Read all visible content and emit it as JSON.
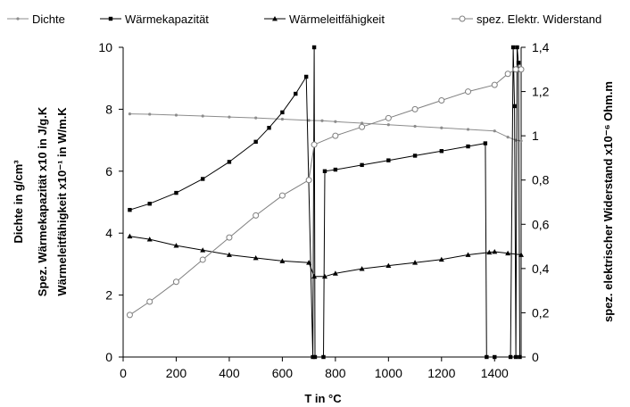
{
  "chart_data": {
    "type": "line",
    "x": {
      "label": "T in °C",
      "range": [
        0,
        1500
      ],
      "ticks": [
        "0",
        "200",
        "400",
        "600",
        "800",
        "1000",
        "1200",
        "1400"
      ],
      "tick_values": [
        0,
        200,
        400,
        600,
        800,
        1000,
        1200,
        1400
      ]
    },
    "y_left": {
      "labels": [
        "Dichte in g/cm³",
        "Spez. Wärmekapazität x10 in  J/g.K",
        "Wärmeleitfähigkeit x10⁻¹ in W/m.K"
      ],
      "range": [
        0,
        10
      ],
      "ticks": [
        "0",
        "2",
        "4",
        "6",
        "8",
        "10"
      ],
      "tick_values": [
        0,
        2,
        4,
        6,
        8,
        10
      ]
    },
    "y_right": {
      "label": "spez. elektrischer Widerstand x10⁻⁶ Ohm.m",
      "range": [
        0,
        1.4
      ],
      "ticks": [
        "0",
        "0,2",
        "0,4",
        "0,6",
        "0,8",
        "1",
        "1,2",
        "1,4"
      ],
      "tick_values": [
        0,
        0.2,
        0.4,
        0.6,
        0.8,
        1.0,
        1.2,
        1.4
      ]
    },
    "grid": false,
    "legend_position": "top",
    "series": [
      {
        "name": "Dichte",
        "axis": "left",
        "marker": "small-dot",
        "color": "#8c8c8c",
        "points": [
          [
            25,
            7.85
          ],
          [
            100,
            7.84
          ],
          [
            200,
            7.81
          ],
          [
            300,
            7.78
          ],
          [
            400,
            7.75
          ],
          [
            500,
            7.72
          ],
          [
            600,
            7.68
          ],
          [
            700,
            7.64
          ],
          [
            750,
            7.63
          ],
          [
            800,
            7.6
          ],
          [
            900,
            7.55
          ],
          [
            1000,
            7.5
          ],
          [
            1100,
            7.45
          ],
          [
            1200,
            7.4
          ],
          [
            1300,
            7.35
          ],
          [
            1400,
            7.3
          ],
          [
            1450,
            7.1
          ],
          [
            1480,
            7.0
          ],
          [
            1500,
            6.98
          ]
        ]
      },
      {
        "name": "Wärmekapazität",
        "axis": "left",
        "marker": "filled-square",
        "color": "#000000",
        "points": [
          [
            25,
            4.75
          ],
          [
            100,
            4.95
          ],
          [
            200,
            5.3
          ],
          [
            300,
            5.75
          ],
          [
            400,
            6.3
          ],
          [
            500,
            6.95
          ],
          [
            550,
            7.4
          ],
          [
            600,
            7.9
          ],
          [
            650,
            8.5
          ],
          [
            690,
            9.05
          ],
          [
            715,
            0
          ],
          [
            720,
            10
          ],
          [
            723,
            0
          ],
          [
            755,
            0
          ],
          [
            760,
            6.0
          ],
          [
            800,
            6.05
          ],
          [
            900,
            6.2
          ],
          [
            1000,
            6.35
          ],
          [
            1100,
            6.5
          ],
          [
            1200,
            6.65
          ],
          [
            1300,
            6.8
          ],
          [
            1365,
            6.9
          ],
          [
            1370,
            0
          ],
          [
            1400,
            0
          ],
          [
            1460,
            0
          ],
          [
            1470,
            10
          ],
          [
            1475,
            8.1
          ],
          [
            1480,
            0
          ],
          [
            1485,
            10
          ],
          [
            1490,
            9.5
          ],
          [
            1495,
            0
          ]
        ]
      },
      {
        "name": "Wärmeleitfähigkeit",
        "axis": "left",
        "marker": "filled-triangle",
        "color": "#000000",
        "points": [
          [
            25,
            3.9
          ],
          [
            100,
            3.8
          ],
          [
            200,
            3.6
          ],
          [
            300,
            3.45
          ],
          [
            400,
            3.3
          ],
          [
            500,
            3.2
          ],
          [
            600,
            3.1
          ],
          [
            700,
            3.05
          ],
          [
            720,
            2.6
          ],
          [
            760,
            2.6
          ],
          [
            800,
            2.7
          ],
          [
            900,
            2.85
          ],
          [
            1000,
            2.95
          ],
          [
            1100,
            3.05
          ],
          [
            1200,
            3.15
          ],
          [
            1300,
            3.3
          ],
          [
            1380,
            3.38
          ],
          [
            1400,
            3.4
          ],
          [
            1450,
            3.35
          ],
          [
            1500,
            3.3
          ]
        ]
      },
      {
        "name": "spez. Elektr. Widerstand",
        "axis": "right",
        "marker": "open-circle",
        "color": "#7f7f7f",
        "points": [
          [
            25,
            0.19
          ],
          [
            100,
            0.25
          ],
          [
            200,
            0.34
          ],
          [
            300,
            0.44
          ],
          [
            400,
            0.54
          ],
          [
            500,
            0.64
          ],
          [
            600,
            0.73
          ],
          [
            700,
            0.8
          ],
          [
            720,
            0.96
          ],
          [
            800,
            1.0
          ],
          [
            900,
            1.04
          ],
          [
            1000,
            1.08
          ],
          [
            1100,
            1.12
          ],
          [
            1200,
            1.16
          ],
          [
            1300,
            1.2
          ],
          [
            1400,
            1.23
          ],
          [
            1450,
            1.28
          ],
          [
            1480,
            1.3
          ],
          [
            1500,
            1.3
          ]
        ]
      }
    ]
  },
  "legend": [
    {
      "name": "Dichte",
      "marker": "small-dot",
      "color": "#8c8c8c"
    },
    {
      "name": "Wärmekapazität",
      "marker": "filled-square",
      "color": "#000000"
    },
    {
      "name": "Wärmeleitfähigkeit",
      "marker": "filled-triangle",
      "color": "#000000"
    },
    {
      "name": "spez. Elektr. Widerstand",
      "marker": "open-circle",
      "color": "#7f7f7f"
    }
  ]
}
